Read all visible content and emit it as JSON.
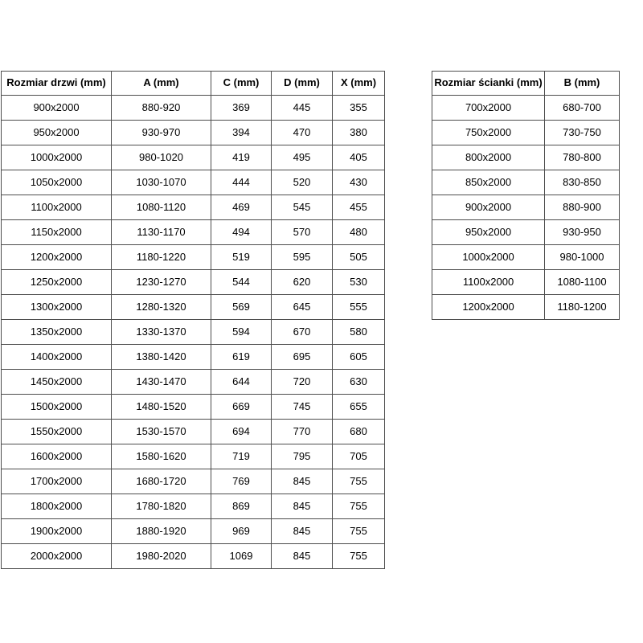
{
  "colors": {
    "background": "#ffffff",
    "border": "#4d4d4d",
    "text": "#000000"
  },
  "door_table": {
    "headers": [
      "Rozmiar drzwi (mm)",
      "A (mm)",
      "C (mm)",
      "D (mm)",
      "X (mm)"
    ],
    "rows": [
      [
        "900x2000",
        "880-920",
        "369",
        "445",
        "355"
      ],
      [
        "950x2000",
        "930-970",
        "394",
        "470",
        "380"
      ],
      [
        "1000x2000",
        "980-1020",
        "419",
        "495",
        "405"
      ],
      [
        "1050x2000",
        "1030-1070",
        "444",
        "520",
        "430"
      ],
      [
        "1100x2000",
        "1080-1120",
        "469",
        "545",
        "455"
      ],
      [
        "1150x2000",
        "1130-1170",
        "494",
        "570",
        "480"
      ],
      [
        "1200x2000",
        "1180-1220",
        "519",
        "595",
        "505"
      ],
      [
        "1250x2000",
        "1230-1270",
        "544",
        "620",
        "530"
      ],
      [
        "1300x2000",
        "1280-1320",
        "569",
        "645",
        "555"
      ],
      [
        "1350x2000",
        "1330-1370",
        "594",
        "670",
        "580"
      ],
      [
        "1400x2000",
        "1380-1420",
        "619",
        "695",
        "605"
      ],
      [
        "1450x2000",
        "1430-1470",
        "644",
        "720",
        "630"
      ],
      [
        "1500x2000",
        "1480-1520",
        "669",
        "745",
        "655"
      ],
      [
        "1550x2000",
        "1530-1570",
        "694",
        "770",
        "680"
      ],
      [
        "1600x2000",
        "1580-1620",
        "719",
        "795",
        "705"
      ],
      [
        "1700x2000",
        "1680-1720",
        "769",
        "845",
        "755"
      ],
      [
        "1800x2000",
        "1780-1820",
        "869",
        "845",
        "755"
      ],
      [
        "1900x2000",
        "1880-1920",
        "969",
        "845",
        "755"
      ],
      [
        "2000x2000",
        "1980-2020",
        "1069",
        "845",
        "755"
      ]
    ]
  },
  "wall_table": {
    "headers": [
      "Rozmiar ścianki (mm)",
      "B (mm)"
    ],
    "rows": [
      [
        "700x2000",
        "680-700"
      ],
      [
        "750x2000",
        "730-750"
      ],
      [
        "800x2000",
        "780-800"
      ],
      [
        "850x2000",
        "830-850"
      ],
      [
        "900x2000",
        "880-900"
      ],
      [
        "950x2000",
        "930-950"
      ],
      [
        "1000x2000",
        "980-1000"
      ],
      [
        "1100x2000",
        "1080-1100"
      ],
      [
        "1200x2000",
        "1180-1200"
      ]
    ]
  }
}
